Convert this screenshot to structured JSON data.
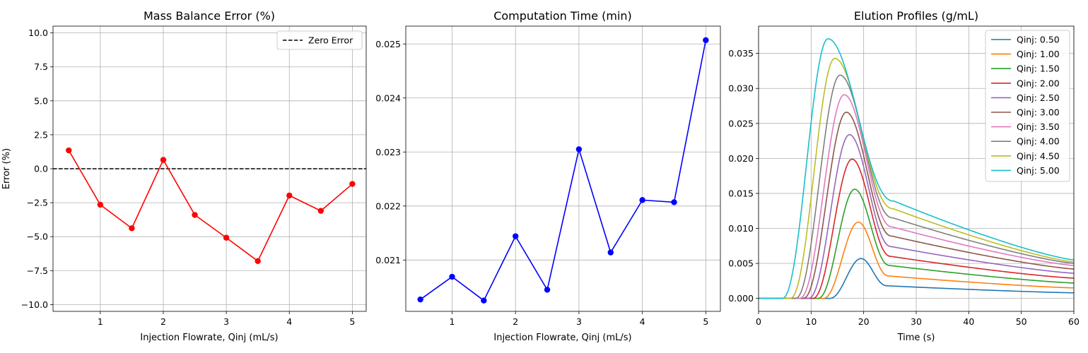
{
  "chart_data": [
    {
      "type": "line",
      "title": "Mass Balance Error (%)",
      "xlabel": "Injection Flowrate, Qinj (mL/s)",
      "ylabel": "Error (%)",
      "xlim": [
        0.25,
        5.22
      ],
      "ylim": [
        -10.5,
        10.5
      ],
      "xticks": [
        1,
        2,
        3,
        4,
        5
      ],
      "xtick_labels": [
        "1",
        "2",
        "3",
        "4",
        "5"
      ],
      "yticks": [
        -10,
        -7.5,
        -5,
        -2.5,
        0,
        2.5,
        5,
        7.5,
        10
      ],
      "ytick_labels": [
        "−10.0",
        "−7.5",
        "−5.0",
        "−2.5",
        "0.0",
        "2.5",
        "5.0",
        "7.5",
        "10.0"
      ],
      "grid": true,
      "legend": {
        "loc": "upper right",
        "entries": [
          "Zero Error"
        ]
      },
      "reference_line": {
        "y": 0,
        "label": "Zero Error",
        "style": "dashed",
        "color": "#000000"
      },
      "series": [
        {
          "color": "#ff0000",
          "marker": "circle",
          "x": [
            0.5,
            1.0,
            1.5,
            2.0,
            2.5,
            3.0,
            3.5,
            4.0,
            4.5,
            5.0
          ],
          "y": [
            1.35,
            -2.65,
            -4.38,
            0.65,
            -3.4,
            -5.08,
            -6.8,
            -1.97,
            -3.1,
            -1.12
          ]
        }
      ]
    },
    {
      "type": "line",
      "title": "Computation Time (min)",
      "xlabel": "Injection Flowrate, Qinj (mL/s)",
      "ylabel": "",
      "xlim": [
        0.27,
        5.23
      ],
      "ylim": [
        0.02005,
        0.02533
      ],
      "xticks": [
        1,
        2,
        3,
        4,
        5
      ],
      "xtick_labels": [
        "1",
        "2",
        "3",
        "4",
        "5"
      ],
      "yticks": [
        0.021,
        0.022,
        0.023,
        0.024,
        0.025
      ],
      "ytick_labels": [
        "0.021",
        "0.022",
        "0.023",
        "0.024",
        "0.025"
      ],
      "grid": true,
      "series": [
        {
          "color": "#0000ff",
          "marker": "circle",
          "x": [
            0.5,
            1.0,
            1.5,
            2.0,
            2.5,
            3.0,
            3.5,
            4.0,
            4.5,
            5.0
          ],
          "y": [
            0.02027,
            0.02069,
            0.02025,
            0.02144,
            0.02045,
            0.02305,
            0.02114,
            0.02211,
            0.02207,
            0.02507
          ]
        }
      ]
    },
    {
      "type": "line",
      "title": "Elution Profiles (g/mL)",
      "xlabel": "Time (s)",
      "ylabel": "",
      "xlim": [
        0,
        60
      ],
      "ylim": [
        -0.00185,
        0.0389
      ],
      "xticks": [
        0,
        10,
        20,
        30,
        40,
        50,
        60
      ],
      "xtick_labels": [
        "0",
        "10",
        "20",
        "30",
        "40",
        "50",
        "60"
      ],
      "yticks": [
        0,
        0.005,
        0.01,
        0.015,
        0.02,
        0.025,
        0.03,
        0.035
      ],
      "ytick_labels": [
        "0.000",
        "0.005",
        "0.010",
        "0.015",
        "0.020",
        "0.025",
        "0.030",
        "0.035"
      ],
      "grid": true,
      "legend": {
        "loc": "upper right"
      },
      "series": [
        {
          "name": "Qinj: 0.50",
          "color": "#1f77b4",
          "peak_t": 19.5,
          "peak": 0.0057,
          "start": 13.5,
          "fall_end": 24.5,
          "tail_start": 0.0018,
          "tail_end": 0.0008
        },
        {
          "name": "Qinj: 1.00",
          "color": "#ff7f0e",
          "peak_t": 19.0,
          "peak": 0.0109,
          "start": 12.3,
          "fall_end": 24.8,
          "tail_start": 0.0032,
          "tail_end": 0.0015
        },
        {
          "name": "Qinj: 1.50",
          "color": "#2ca02c",
          "peak_t": 18.3,
          "peak": 0.0156,
          "start": 11.3,
          "fall_end": 25.0,
          "tail_start": 0.0047,
          "tail_end": 0.0022
        },
        {
          "name": "Qinj: 2.00",
          "color": "#d62728",
          "peak_t": 17.8,
          "peak": 0.0199,
          "start": 10.3,
          "fall_end": 25.2,
          "tail_start": 0.006,
          "tail_end": 0.0029
        },
        {
          "name": "Qinj: 2.50",
          "color": "#9467bd",
          "peak_t": 17.3,
          "peak": 0.0234,
          "start": 9.5,
          "fall_end": 25.3,
          "tail_start": 0.0074,
          "tail_end": 0.0036
        },
        {
          "name": "Qinj: 3.00",
          "color": "#8c564b",
          "peak_t": 16.7,
          "peak": 0.0266,
          "start": 8.5,
          "fall_end": 25.4,
          "tail_start": 0.0089,
          "tail_end": 0.0042
        },
        {
          "name": "Qinj: 3.50",
          "color": "#e377c2",
          "peak_t": 16.3,
          "peak": 0.0291,
          "start": 7.8,
          "fall_end": 25.5,
          "tail_start": 0.0102,
          "tail_end": 0.0047
        },
        {
          "name": "Qinj: 4.00",
          "color": "#7f7f7f",
          "peak_t": 15.5,
          "peak": 0.0319,
          "start": 7.0,
          "fall_end": 25.6,
          "tail_start": 0.0115,
          "tail_end": 0.005
        },
        {
          "name": "Qinj: 4.50",
          "color": "#bcbd22",
          "peak_t": 14.5,
          "peak": 0.0343,
          "start": 6.0,
          "fall_end": 25.7,
          "tail_start": 0.0128,
          "tail_end": 0.0052
        },
        {
          "name": "Qinj: 5.00",
          "color": "#17becf",
          "peak_t": 13.2,
          "peak": 0.0371,
          "start": 4.5,
          "fall_end": 25.8,
          "tail_start": 0.0139,
          "tail_end": 0.0055
        }
      ]
    }
  ]
}
